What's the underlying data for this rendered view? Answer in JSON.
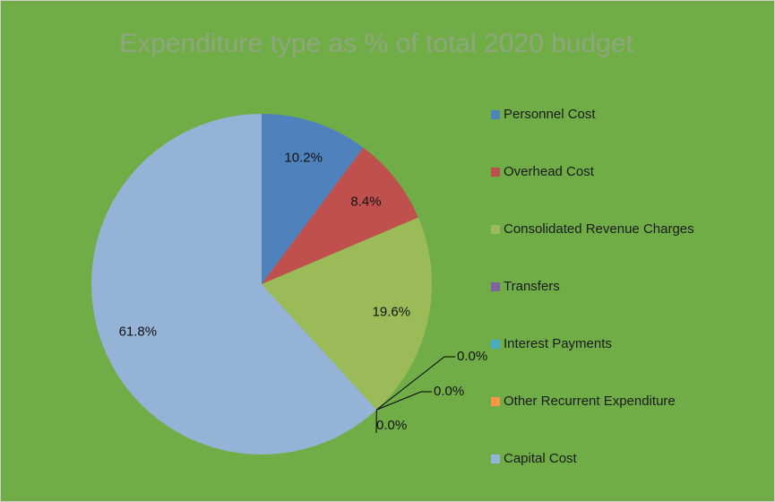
{
  "chart_data": {
    "type": "pie",
    "title": "Expenditure type as % of total 2020 budget",
    "categories": [
      "Personnel Cost",
      "Overhead Cost",
      "Consolidated Revenue Charges",
      "Transfers",
      "Interest Payments",
      "Other Recurrent Expenditure",
      "Capital Cost"
    ],
    "values": [
      10.2,
      8.4,
      19.6,
      0,
      0,
      0,
      61.8
    ],
    "value_labels": [
      "10.2%",
      "8.4%",
      "19.6%",
      "0.0%",
      "0.0%",
      "0.0%",
      "61.8%"
    ],
    "colors": [
      "#4f81bd",
      "#c0504d",
      "#9bbb59",
      "#8064a2",
      "#4bacc6",
      "#f79646",
      "#95b3d7"
    ],
    "legend": "right"
  }
}
